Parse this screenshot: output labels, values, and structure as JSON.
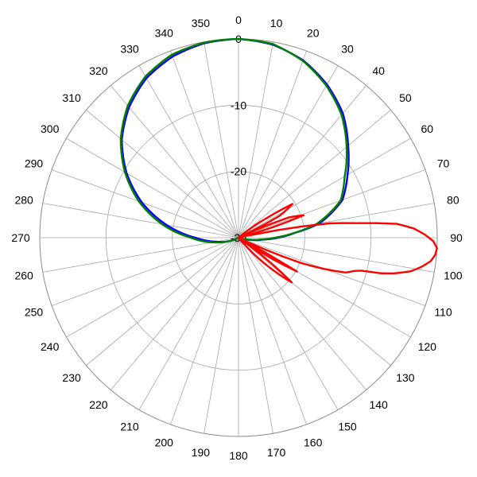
{
  "chart_data": {
    "type": "polar-line",
    "title": "",
    "angle_unit": "degrees",
    "angle_direction": "clockwise",
    "angle_zero": "top",
    "angle_ticks": [
      0,
      10,
      20,
      30,
      40,
      50,
      60,
      70,
      80,
      90,
      100,
      110,
      120,
      130,
      140,
      150,
      160,
      170,
      180,
      190,
      200,
      210,
      220,
      230,
      240,
      250,
      260,
      270,
      280,
      290,
      300,
      310,
      320,
      330,
      340,
      350
    ],
    "angle_tick_labels": [
      "0",
      "10",
      "20",
      "30",
      "40",
      "50",
      "60",
      "70",
      "80",
      "90",
      "100",
      "110",
      "120",
      "130",
      "140",
      "150",
      "160",
      "170",
      "180",
      "190",
      "200",
      "210",
      "220",
      "230",
      "240",
      "250",
      "260",
      "270",
      "280",
      "290",
      "300",
      "310",
      "320",
      "330",
      "340",
      "350"
    ],
    "radial_range": [
      -30,
      0
    ],
    "radial_ticks": [
      -30,
      -20,
      -10,
      0
    ],
    "radial_tick_labels": [
      "-30",
      "-20",
      "-10",
      "0"
    ],
    "grid": true,
    "legend": "none",
    "series": [
      {
        "color": "#0000ff",
        "theta": [
          0,
          10,
          20,
          30,
          40,
          50,
          60,
          70,
          80,
          85,
          90,
          95,
          100,
          105,
          110,
          115,
          120,
          240,
          250,
          260,
          270,
          280,
          290,
          300,
          310,
          320,
          330,
          340,
          350
        ],
        "r": [
          0,
          -0.4,
          -1.5,
          -3.3,
          -5.5,
          -8.4,
          -11.0,
          -13.3,
          -17.6,
          -21.4,
          -24.0,
          -26.5,
          -28.0,
          -29.3,
          -30,
          -30,
          -30,
          -30,
          -28.5,
          -26.6,
          -23.5,
          -19.0,
          -14.5,
          -10.5,
          -7.0,
          -4.3,
          -2.2,
          -0.9,
          -0.2
        ]
      },
      {
        "color": "#008000",
        "theta": [
          0,
          10,
          20,
          30,
          40,
          50,
          60,
          70,
          80,
          85,
          90,
          95,
          100,
          105,
          110,
          115,
          120,
          240,
          245,
          250,
          260,
          270,
          280,
          290,
          300,
          310,
          320,
          330,
          340,
          350
        ],
        "r": [
          0,
          -0.3,
          -1.6,
          -3.5,
          -5.8,
          -8.7,
          -11.5,
          -13.6,
          -18.0,
          -21.5,
          -24.5,
          -26.8,
          -28.3,
          -29.4,
          -30,
          -30,
          -30,
          -30,
          -29.3,
          -28.5,
          -26.0,
          -22.8,
          -18.3,
          -14.0,
          -10.2,
          -6.8,
          -4.0,
          -1.9,
          -0.6,
          -0.1
        ]
      },
      {
        "color": "#ff0000",
        "theta": [
          0,
          30,
          50,
          55,
          58,
          62,
          65,
          68,
          71,
          75,
          78,
          81,
          83,
          85,
          87,
          89,
          91,
          93,
          95,
          97,
          99,
          101,
          103,
          104,
          105,
          106,
          108,
          110,
          112,
          114,
          116,
          118,
          120,
          125,
          130,
          140,
          150,
          160,
          170,
          180,
          360
        ],
        "r": [
          -30,
          -30,
          -30,
          -25.0,
          -20.4,
          -23.0,
          -30,
          -21.8,
          -19.6,
          -30,
          -28.0,
          -16.2,
          -12.0,
          -6.0,
          -3.5,
          -1.9,
          -0.6,
          0,
          -0.2,
          -0.8,
          -2.0,
          -3.5,
          -6.0,
          -7.8,
          -10.8,
          -11.8,
          -13.0,
          -16.2,
          -19.8,
          -26.0,
          -30,
          -30,
          -19.8,
          -30,
          -19.5,
          -30,
          -30,
          -30,
          -30,
          -30,
          -30
        ]
      }
    ]
  }
}
